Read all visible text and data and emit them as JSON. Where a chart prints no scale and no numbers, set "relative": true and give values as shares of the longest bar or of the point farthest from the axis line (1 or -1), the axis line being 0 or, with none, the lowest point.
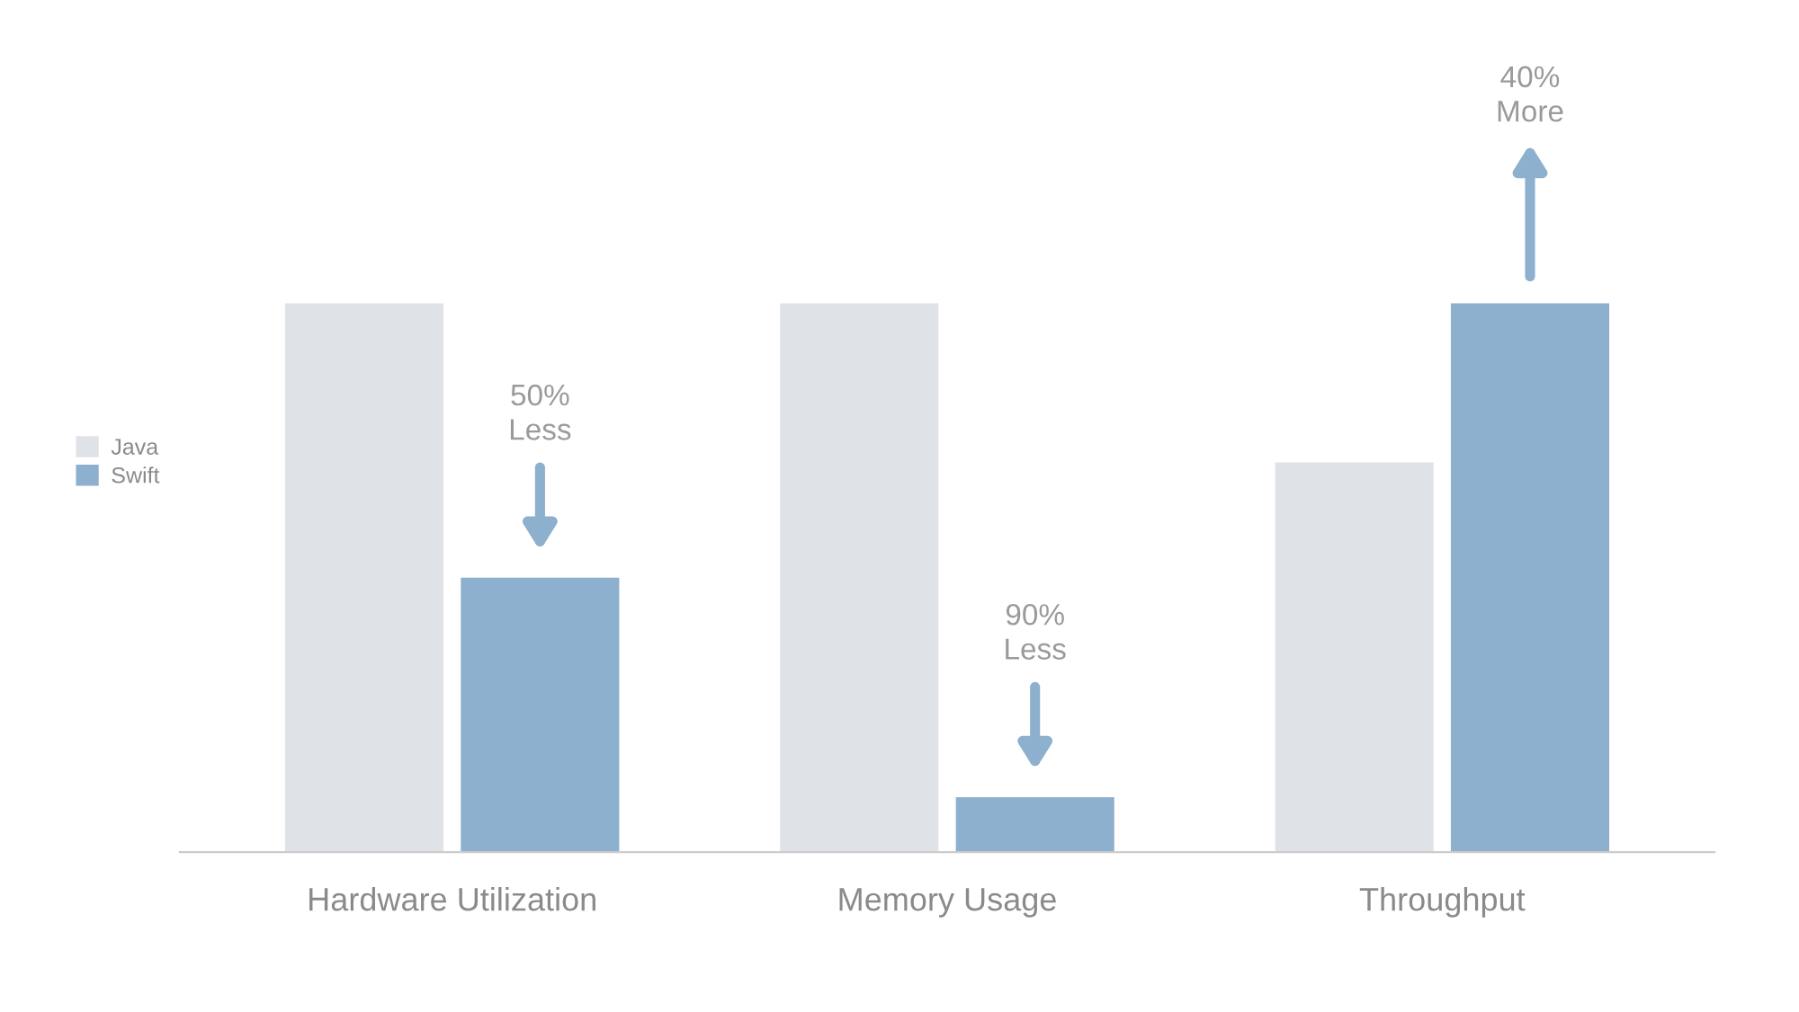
{
  "chart_data": {
    "type": "bar",
    "relative": true,
    "categories": [
      "Hardware Utilization",
      "Memory Usage",
      "Throughput"
    ],
    "series": [
      {
        "name": "Java",
        "color": "#dfe2e6",
        "values": [
          1,
          1,
          0.71
        ]
      },
      {
        "name": "Swift",
        "color": "#8cb0cd",
        "values": [
          0.5,
          0.1,
          1
        ]
      }
    ],
    "annotations": [
      "50%\nLess",
      "90%\nLess",
      "40%\nMore"
    ],
    "legend": "left",
    "grid": false
  }
}
